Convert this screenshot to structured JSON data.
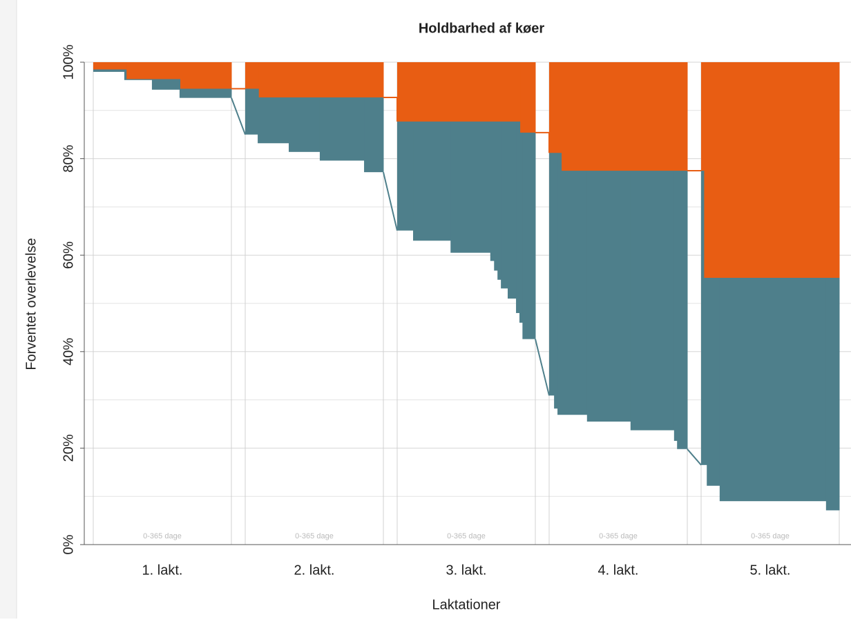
{
  "chart_data": {
    "type": "survival-steps",
    "title": "Holdbarhed af køer",
    "x_label": "Laktationer",
    "y_label": "Forventet overlevelse",
    "categories": [
      "1. lakt.",
      "2. lakt.",
      "3. lakt.",
      "4. lakt.",
      "5. lakt."
    ],
    "panel_label": "0-365 dage",
    "xlim": [
      0,
      365
    ],
    "ylim": [
      0,
      100
    ],
    "yticks": [
      {
        "value": 0,
        "label": "0%"
      },
      {
        "value": 20,
        "label": "20%"
      },
      {
        "value": 40,
        "label": "40%"
      },
      {
        "value": 60,
        "label": "60%"
      },
      {
        "value": 80,
        "label": "80%"
      },
      {
        "value": 100,
        "label": "100%"
      }
    ],
    "minor_yticks": [
      10,
      30,
      50,
      70,
      90
    ],
    "grid": true,
    "survival_color": "#4e7f8b",
    "expected_color": "#e85d13",
    "panels": [
      {
        "survival_days": [
          0,
          82,
          155,
          228
        ],
        "survival": [
          98,
          96.3,
          94.3,
          92.6
        ],
        "expected_days": [
          0,
          88,
          230
        ],
        "expected": [
          98.5,
          96.5,
          94.5
        ]
      },
      {
        "survival_days": [
          0,
          33,
          115,
          197,
          314
        ],
        "survival": [
          85,
          83.2,
          81.4,
          79.6,
          77.2
        ],
        "expected_days": [
          0,
          36
        ],
        "expected": [
          94.5,
          92.7
        ]
      },
      {
        "survival_days": [
          0,
          42,
          141,
          246,
          256,
          265,
          274,
          292,
          314,
          323,
          331
        ],
        "survival": [
          65.1,
          63,
          60.5,
          58.8,
          56.8,
          54.9,
          53.1,
          51,
          48,
          46,
          42.6
        ],
        "expected_days": [
          0,
          325
        ],
        "expected": [
          87.7,
          85.4
        ]
      },
      {
        "survival_days": [
          0,
          13,
          22,
          100,
          215,
          330,
          338
        ],
        "survival": [
          30.9,
          28.2,
          26.9,
          25.5,
          23.7,
          21.5,
          19.8
        ],
        "expected_days": [
          0,
          33
        ],
        "expected": [
          81.2,
          77.5
        ]
      },
      {
        "survival_days": [
          0,
          15,
          49,
          330
        ],
        "survival": [
          16.5,
          12.2,
          9,
          7.1
        ],
        "expected_days": [
          0,
          8
        ],
        "expected": [
          77.5,
          55.3
        ]
      }
    ]
  }
}
